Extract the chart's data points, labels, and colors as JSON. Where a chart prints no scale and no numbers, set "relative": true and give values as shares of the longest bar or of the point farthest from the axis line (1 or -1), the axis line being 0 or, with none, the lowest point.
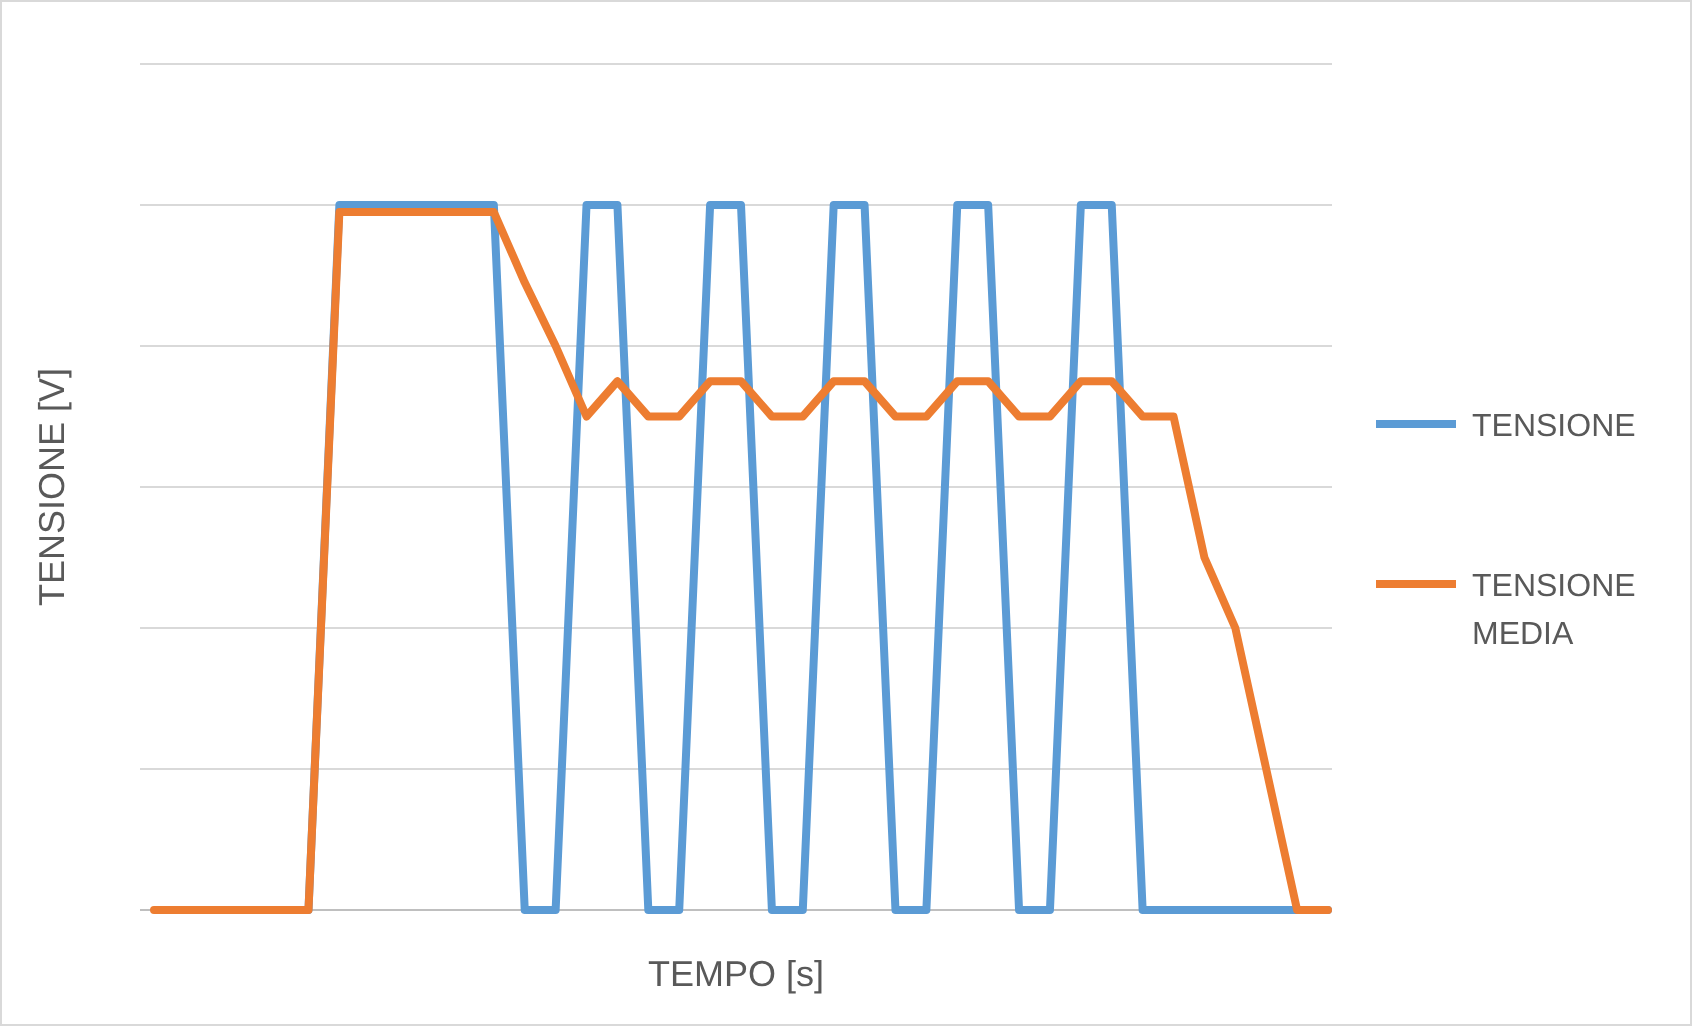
{
  "chart_data": {
    "type": "line",
    "relative": true,
    "xlabel": "TEMPO [s]",
    "ylabel": "TENSIONE [V]",
    "grid": "y",
    "legend": "right",
    "marker": "none",
    "line_style": "solid",
    "categories": [
      null,
      null,
      null,
      null,
      null,
      null,
      null,
      null,
      null,
      null,
      null,
      null,
      null,
      null,
      null,
      null,
      null,
      null,
      null,
      null,
      null,
      null,
      null,
      null,
      null,
      null,
      null,
      null,
      null,
      null,
      null,
      null,
      null,
      null,
      null,
      null,
      null,
      null,
      null
    ],
    "series": [
      {
        "name": "TENSIONE",
        "color": "#5b9bd5",
        "values": [
          null,
          null,
          null,
          null,
          null,
          0,
          1,
          1,
          1,
          1,
          1,
          1,
          0,
          0,
          1,
          1,
          0,
          0,
          1,
          1,
          0,
          0,
          1,
          1,
          0,
          0,
          1,
          1,
          0,
          0,
          1,
          1,
          0,
          0,
          0,
          0,
          0,
          0,
          0
        ]
      },
      {
        "name": "TENSIONE MEDIA",
        "color": "#ed7d31",
        "values": [
          0,
          0,
          0,
          0,
          0,
          0,
          0.99,
          0.99,
          0.99,
          0.99,
          0.99,
          0.99,
          0.89,
          0.8,
          0.7,
          0.75,
          0.7,
          0.7,
          0.75,
          0.75,
          0.7,
          0.7,
          0.75,
          0.75,
          0.7,
          0.7,
          0.75,
          0.75,
          0.7,
          0.7,
          0.75,
          0.75,
          0.7,
          0.7,
          0.5,
          0.4,
          0.2,
          0,
          0
        ]
      }
    ]
  }
}
